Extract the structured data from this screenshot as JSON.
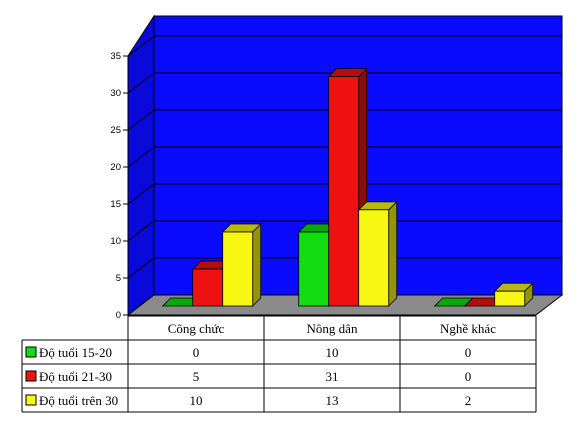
{
  "chart_data": {
    "type": "bar",
    "categories": [
      "Công chức",
      "Nông dân",
      "Nghề khác"
    ],
    "series": [
      {
        "name": "Độ tuổi 15-20",
        "values": [
          0,
          10,
          0
        ],
        "color": "#11dd11"
      },
      {
        "name": "Độ tuổi 21-30",
        "values": [
          5,
          31,
          0
        ],
        "color": "#ee1111"
      },
      {
        "name": "Độ tuổi trên 30",
        "values": [
          10,
          13,
          2
        ],
        "color": "#f7f711"
      }
    ],
    "ylim": [
      0,
      35
    ],
    "yticks": [
      "0",
      "5",
      "10",
      "15",
      "20",
      "25",
      "30",
      "35"
    ],
    "grid": true,
    "legend": "data-table-left",
    "wall_color": "#0a0aff",
    "floor_color": "#8a8a8a"
  }
}
